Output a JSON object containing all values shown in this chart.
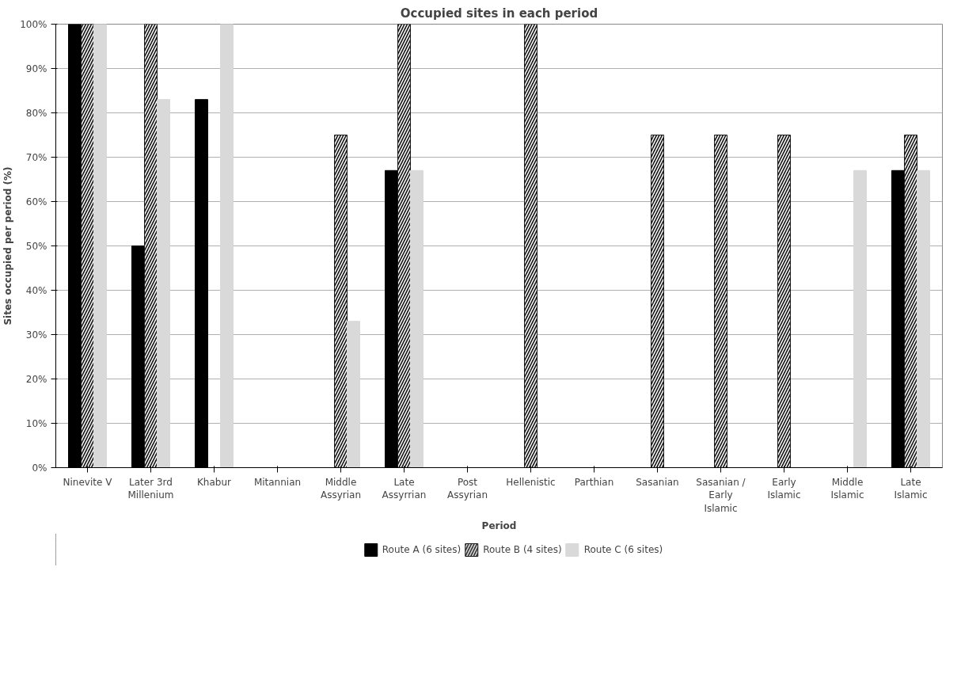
{
  "chart_data": {
    "type": "bar",
    "title": "Occupied sites in each period",
    "xlabel": "Period",
    "ylabel": "Sites occupied per period (%)",
    "categories": [
      "Ninevite V",
      "Later 3rd Millenium",
      "Khabur",
      "Mitannian",
      "Middle Assyrian",
      "Late Assyrrian",
      "Post Assyrian",
      "Hellenistic",
      "Parthian",
      "Sasanian",
      "Sasanian / Early Islamic",
      "Early Islamic",
      "Middle Islamic",
      "Late Islamic"
    ],
    "series": [
      {
        "name": "Route A (6 sites)",
        "color": "#000000",
        "values": [
          100,
          50,
          83,
          0,
          0,
          67,
          0,
          0,
          0,
          0,
          0,
          0,
          0,
          67
        ]
      },
      {
        "name": "Route B (4 sites)",
        "color": "#1a1a1a",
        "values": [
          100,
          100,
          0,
          0,
          75,
          100,
          0,
          100,
          0,
          75,
          75,
          75,
          0,
          75
        ]
      },
      {
        "name": "Route C (6 sites)",
        "color": "#d9d9d9",
        "values": [
          100,
          83,
          100,
          0,
          33,
          67,
          0,
          0,
          0,
          0,
          0,
          0,
          67,
          67
        ]
      }
    ],
    "ylim": [
      0,
      100
    ],
    "yticks": [
      {
        "value": 0,
        "label": "0%"
      },
      {
        "value": 10,
        "label": "10%"
      },
      {
        "value": 20,
        "label": "20%"
      },
      {
        "value": 30,
        "label": "30%"
      },
      {
        "value": 40,
        "label": "40%"
      },
      {
        "value": 50,
        "label": "50%"
      },
      {
        "value": 60,
        "label": "60%"
      },
      {
        "value": 70,
        "label": "70%"
      },
      {
        "value": 80,
        "label": "80%"
      },
      {
        "value": 90,
        "label": "90%"
      },
      {
        "value": 100,
        "label": "100%"
      }
    ],
    "grid": "y",
    "legend": "bottom"
  }
}
